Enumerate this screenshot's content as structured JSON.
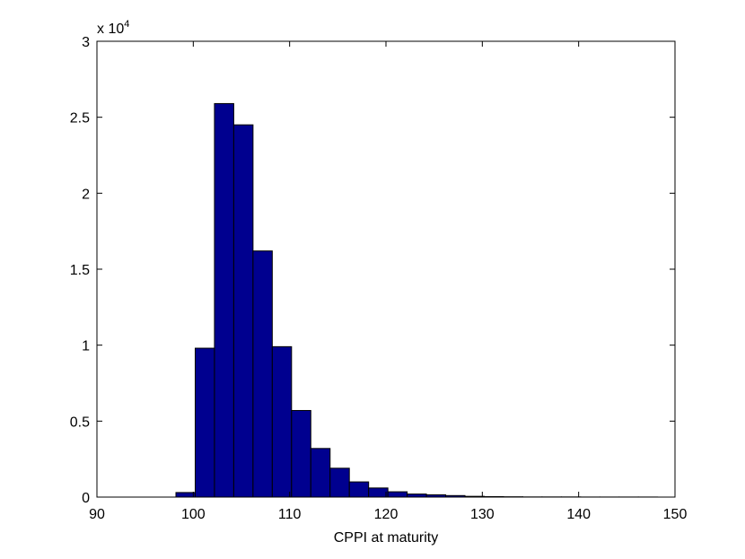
{
  "chart_data": {
    "type": "histogram",
    "xlabel": "CPPI at maturity",
    "y_multiplier": {
      "base": "x 10",
      "exponent": "4"
    },
    "bins": [
      98.2,
      100.2,
      102.2,
      104.2,
      106.2,
      108.2,
      110.2,
      112.2,
      114.2,
      116.2,
      118.2,
      120.2,
      122.2,
      124.2,
      126.2,
      128.2,
      130.2,
      132.2,
      134.2,
      136.2,
      138.2,
      140.2,
      142.2,
      144.2,
      146.2,
      148.2
    ],
    "values": [
      0.03,
      0.98,
      2.59,
      2.45,
      1.62,
      0.99,
      0.57,
      0.32,
      0.19,
      0.1,
      0.06,
      0.035,
      0.02,
      0.015,
      0.01,
      0.005,
      0.003,
      0.002,
      0.001,
      0.001,
      0.001,
      0.0005,
      0.0005,
      0.0005,
      0.0005
    ],
    "color": "#00008f",
    "xlim": [
      90,
      150
    ],
    "xticks": [
      90,
      100,
      110,
      120,
      130,
      140,
      150
    ],
    "ylim": [
      0,
      3
    ],
    "yticks": [
      0,
      0.5,
      1,
      1.5,
      2,
      2.5,
      3
    ]
  }
}
